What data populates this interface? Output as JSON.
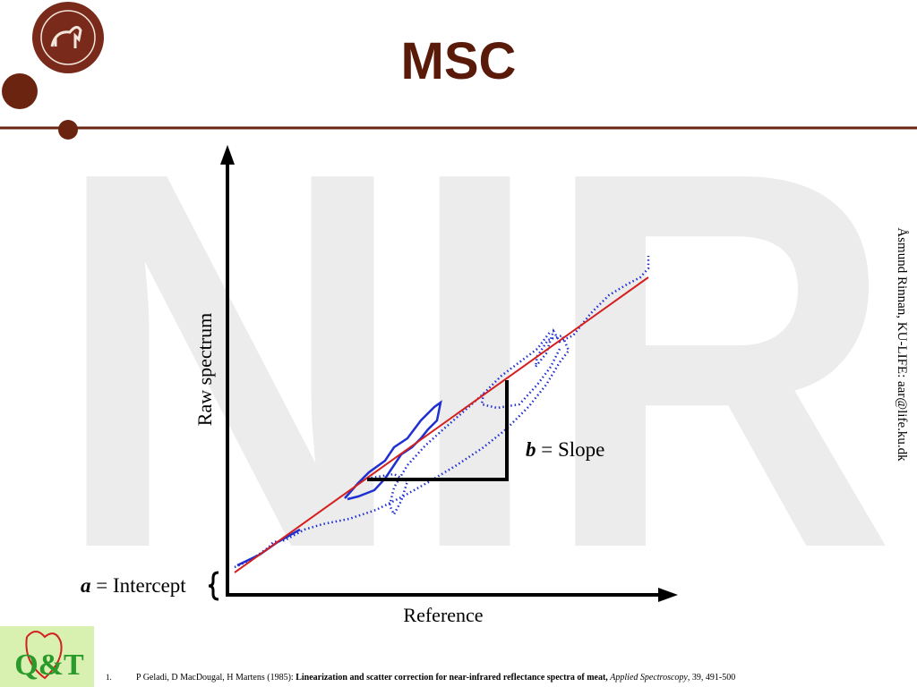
{
  "header": {
    "title": "MSC"
  },
  "watermark": "NIR",
  "diagram": {
    "y_axis_label": "Raw spectrum",
    "x_axis_label": "Reference",
    "intercept": {
      "var": "a",
      "text": "= Intercept"
    },
    "slope": {
      "var": "b",
      "text": "= Slope"
    }
  },
  "side_note": "Åsmund Rinnan, KU-LIFE: aar@life.ku.dk",
  "logo": "Q&T",
  "footnote": {
    "number": "1.",
    "authors": "P Geladi, D MacDougal, H Martens (1985):",
    "title": "Linearization and scatter correction for near-infrared reflectance spectra of meat,",
    "journal": "Applied Spectroscopy",
    "rest": ", 39, 491-500"
  }
}
